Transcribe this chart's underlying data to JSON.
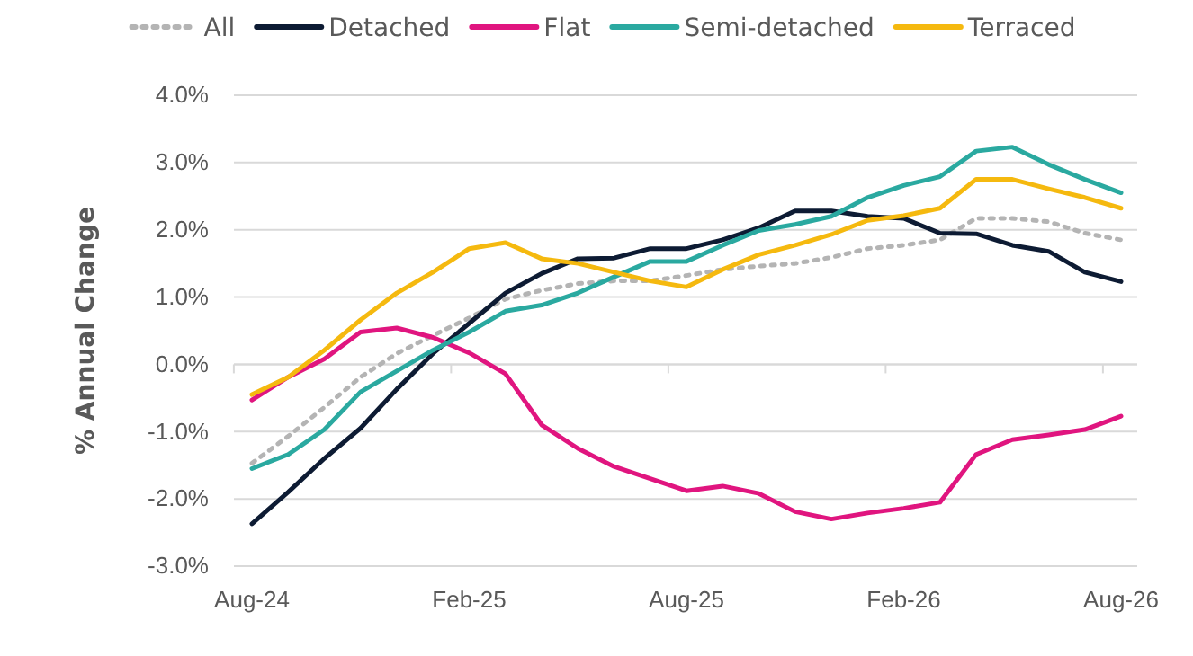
{
  "chart_data": {
    "type": "line",
    "ylabel": "% Annual Change",
    "categories": [
      "Aug-24",
      null,
      null,
      null,
      null,
      null,
      "Feb-25",
      null,
      null,
      null,
      null,
      null,
      "Aug-25",
      null,
      null,
      null,
      null,
      null,
      "Feb-26",
      null,
      null,
      null,
      null,
      null,
      "Aug-26"
    ],
    "ylim": [
      -3,
      4
    ],
    "yticks": [
      {
        "value": -3,
        "label": "-3.0%"
      },
      {
        "value": -2,
        "label": "-2.0%"
      },
      {
        "value": -1,
        "label": "-1.0%"
      },
      {
        "value": 0,
        "label": "0.0%"
      },
      {
        "value": 1,
        "label": "1.0%"
      },
      {
        "value": 2,
        "label": "2.0%"
      },
      {
        "value": 3,
        "label": "3.0%"
      },
      {
        "value": 4,
        "label": "4.0%"
      }
    ],
    "grid": "y",
    "legend": "top",
    "marker": "none",
    "series": [
      {
        "name": "All",
        "color": "#b4b4b4",
        "line_style": "dotted",
        "values": [
          -1.47,
          -1.07,
          -0.64,
          -0.19,
          0.16,
          0.43,
          0.69,
          0.97,
          1.1,
          1.2,
          1.24,
          1.24,
          1.32,
          1.41,
          1.46,
          1.5,
          1.59,
          1.72,
          1.77,
          1.85,
          2.17,
          2.17,
          2.12,
          1.95,
          1.85
        ]
      },
      {
        "name": "Detached",
        "color": "#0d1b33",
        "values": [
          -2.37,
          -1.9,
          -1.4,
          -0.95,
          -0.37,
          0.16,
          0.61,
          1.06,
          1.35,
          1.57,
          1.58,
          1.72,
          1.72,
          1.85,
          2.03,
          2.28,
          2.28,
          2.2,
          2.17,
          1.95,
          1.94,
          1.77,
          1.68,
          1.37,
          1.23
        ]
      },
      {
        "name": "Flat",
        "color": "#e0157f",
        "values": [
          -0.53,
          -0.19,
          0.08,
          0.48,
          0.54,
          0.4,
          0.17,
          -0.14,
          -0.9,
          -1.25,
          -1.52,
          -1.7,
          -1.88,
          -1.81,
          -1.92,
          -2.19,
          -2.3,
          -2.21,
          -2.14,
          -2.05,
          -1.34,
          -1.12,
          -1.05,
          -0.97,
          -0.77
        ]
      },
      {
        "name": "Semi-detached",
        "color": "#2aa9a0",
        "values": [
          -1.55,
          -1.34,
          -0.97,
          -0.41,
          -0.1,
          0.21,
          0.48,
          0.79,
          0.88,
          1.06,
          1.3,
          1.53,
          1.53,
          1.77,
          1.99,
          2.08,
          2.2,
          2.48,
          2.66,
          2.79,
          3.17,
          3.23,
          2.97,
          2.75,
          2.55
        ]
      },
      {
        "name": "Terraced",
        "color": "#f5b90f",
        "values": [
          -0.45,
          -0.19,
          0.21,
          0.66,
          1.06,
          1.37,
          1.72,
          1.81,
          1.57,
          1.5,
          1.37,
          1.24,
          1.15,
          1.41,
          1.63,
          1.77,
          1.93,
          2.14,
          2.21,
          2.32,
          2.75,
          2.75,
          2.61,
          2.48,
          2.32
        ]
      }
    ]
  }
}
